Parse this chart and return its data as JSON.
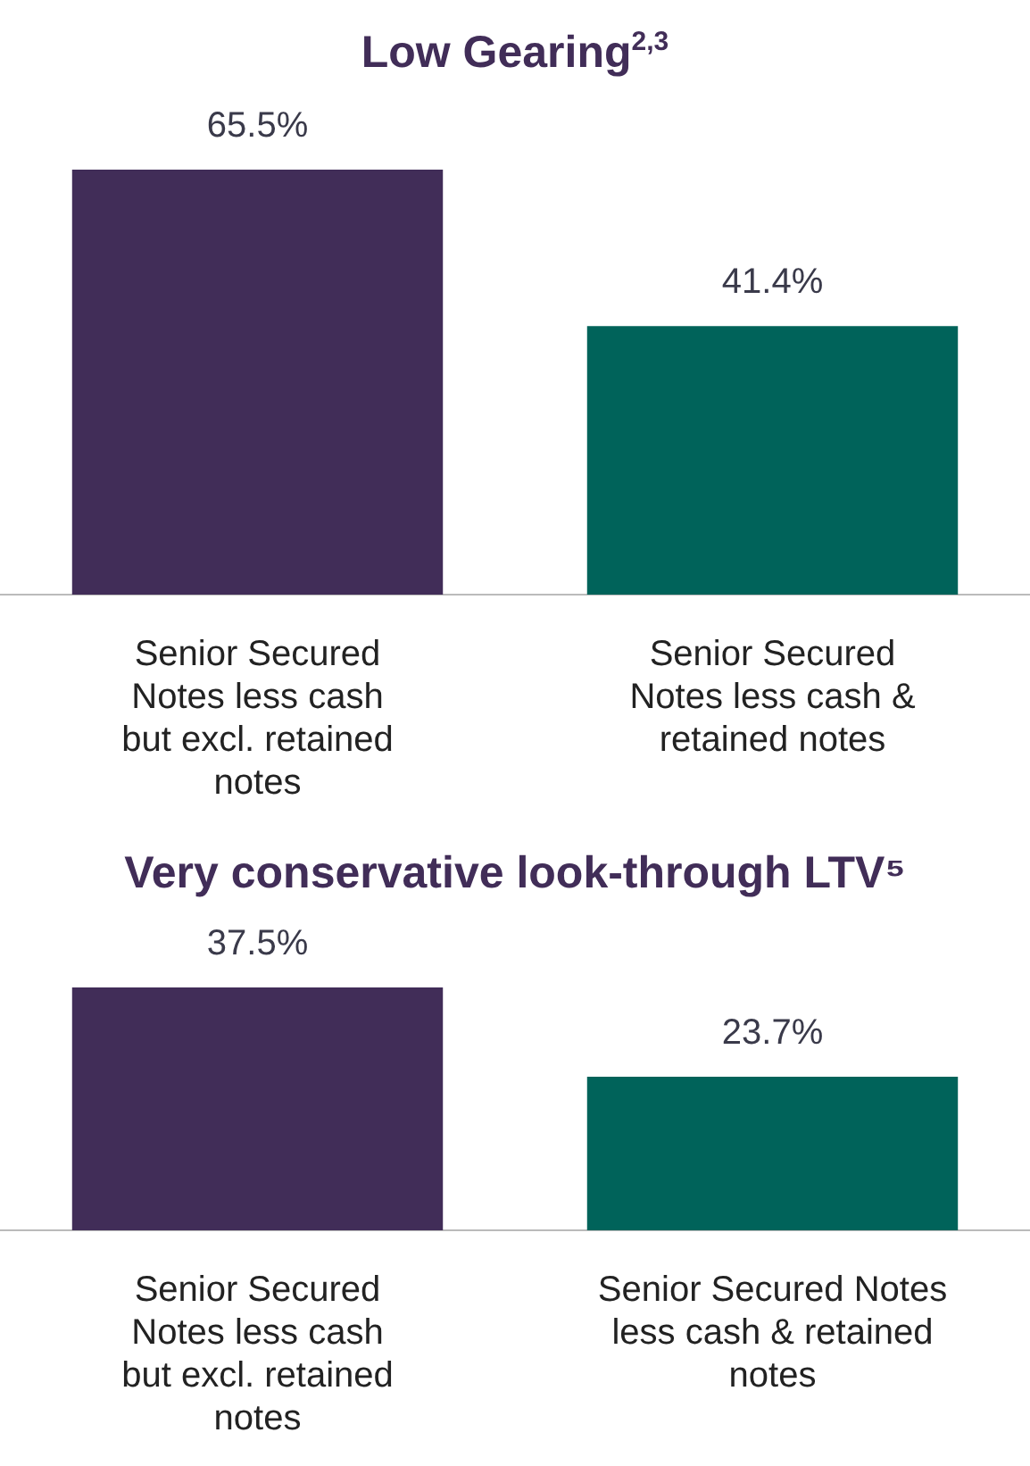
{
  "chart_data": [
    {
      "type": "bar",
      "title": "Low Gearing$^{2,3}$",
      "categories": [
        "Senior Secured Notes less cash but excl. retained notes",
        "Senior Secured Notes less cash & retained notes"
      ],
      "values": [
        65.5,
        41.4
      ],
      "colors": [
        "#412d58",
        "#00635a"
      ],
      "value_labels": [
        "65.5%",
        "41.4%"
      ]
    },
    {
      "type": "bar",
      "title": "Very conservative look-through LTV⁵",
      "categories": [
        "Senior Secured Notes less cash but excl. retained notes",
        "Senior Secured Notes less cash & retained notes"
      ],
      "values": [
        37.5,
        23.7
      ],
      "colors": [
        "#412d58",
        "#00635a"
      ],
      "value_labels": [
        "37.5%",
        "23.7%"
      ]
    }
  ]
}
